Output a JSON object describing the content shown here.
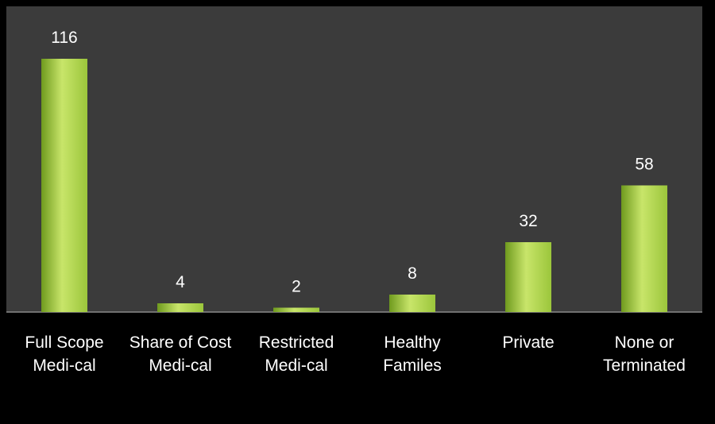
{
  "chart_data": {
    "type": "bar",
    "categories": [
      [
        "Full Scope",
        "Medi-cal"
      ],
      [
        "Share of Cost",
        "Medi-cal"
      ],
      [
        "Restricted",
        "Medi-cal"
      ],
      [
        "Healthy",
        "Familes"
      ],
      [
        "Private"
      ],
      [
        "None or",
        "Terminated"
      ]
    ],
    "values": [
      116,
      4,
      2,
      8,
      32,
      58
    ],
    "title": "",
    "xlabel": "",
    "ylabel": "",
    "ylim": [
      0,
      130
    ],
    "grid": false,
    "legend": "none",
    "colors": {
      "plot_background": "#3b3b3b",
      "page_background": "#000000",
      "bar_light": "#c8e56a",
      "bar_mid": "#9bc63b",
      "bar_dark": "#6f9a1e",
      "axis_line": "#8a8a8a",
      "text": "#ffffff"
    }
  }
}
